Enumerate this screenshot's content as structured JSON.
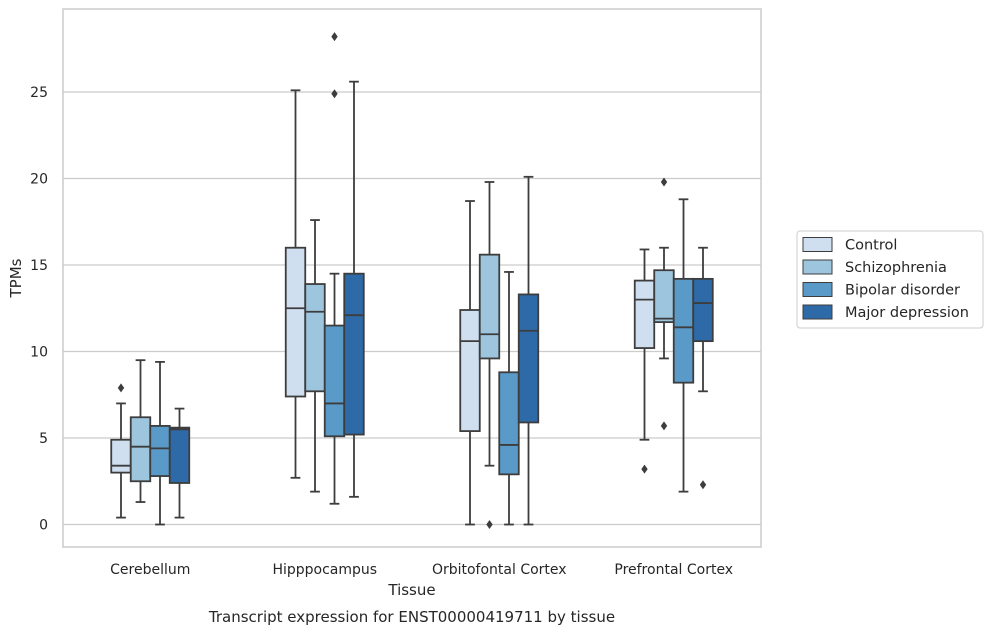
{
  "caption": "Transcript expression for ENST00000419711 by tissue",
  "chart_data": {
    "type": "box",
    "xlabel": "Tissue",
    "ylabel": "TPMs",
    "categories": [
      "Cerebellum",
      "Hipppocampus",
      "Orbitofontal Cortex",
      "Prefrontal Cortex"
    ],
    "ylim": [
      -1.3,
      29.8
    ],
    "yticks": [
      "0",
      "5",
      "10",
      "15",
      "20",
      "25"
    ],
    "grid": "horizontal",
    "legend_position": "right",
    "series": [
      {
        "name": "Control",
        "color": "#cfdff0",
        "boxes": [
          {
            "whislo": 0.4,
            "q1": 3.0,
            "med": 3.4,
            "q3": 4.9,
            "whishi": 7.0,
            "fliers": [
              7.9
            ]
          },
          {
            "whislo": 2.7,
            "q1": 7.4,
            "med": 12.5,
            "q3": 16.0,
            "whishi": 25.1,
            "fliers": []
          },
          {
            "whislo": 0.0,
            "q1": 5.4,
            "med": 10.6,
            "q3": 12.4,
            "whishi": 18.7,
            "fliers": []
          },
          {
            "whislo": 4.9,
            "q1": 10.2,
            "med": 13.0,
            "q3": 14.1,
            "whishi": 15.9,
            "fliers": [
              3.2
            ]
          }
        ]
      },
      {
        "name": "Schizophrenia",
        "color": "#9dc5de",
        "boxes": [
          {
            "whislo": 1.3,
            "q1": 2.5,
            "med": 4.5,
            "q3": 6.2,
            "whishi": 9.5,
            "fliers": []
          },
          {
            "whislo": 1.9,
            "q1": 7.7,
            "med": 12.3,
            "q3": 13.9,
            "whishi": 17.6,
            "fliers": []
          },
          {
            "whislo": 3.4,
            "q1": 9.6,
            "med": 11.0,
            "q3": 15.6,
            "whishi": 19.8,
            "fliers": [
              0.0
            ]
          },
          {
            "whislo": 9.6,
            "q1": 11.7,
            "med": 11.9,
            "q3": 14.7,
            "whishi": 16.0,
            "fliers": [
              19.8,
              5.7
            ]
          }
        ]
      },
      {
        "name": "Bipolar disorder",
        "color": "#5a9ac8",
        "boxes": [
          {
            "whislo": 0.0,
            "q1": 2.8,
            "med": 4.4,
            "q3": 5.7,
            "whishi": 9.4,
            "fliers": []
          },
          {
            "whislo": 1.2,
            "q1": 5.1,
            "med": 7.0,
            "q3": 11.5,
            "whishi": 14.5,
            "fliers": [
              28.2,
              24.9
            ]
          },
          {
            "whislo": 0.0,
            "q1": 2.9,
            "med": 4.6,
            "q3": 8.8,
            "whishi": 14.6,
            "fliers": []
          },
          {
            "whislo": 1.9,
            "q1": 8.2,
            "med": 11.4,
            "q3": 14.2,
            "whishi": 18.8,
            "fliers": []
          }
        ]
      },
      {
        "name": "Major depression",
        "color": "#2e6aa8",
        "boxes": [
          {
            "whislo": 0.4,
            "q1": 2.4,
            "med": 5.5,
            "q3": 5.6,
            "whishi": 6.7,
            "fliers": []
          },
          {
            "whislo": 1.6,
            "q1": 5.2,
            "med": 12.1,
            "q3": 14.5,
            "whishi": 25.6,
            "fliers": []
          },
          {
            "whislo": 0.0,
            "q1": 5.9,
            "med": 11.2,
            "q3": 13.3,
            "whishi": 20.1,
            "fliers": []
          },
          {
            "whislo": 7.7,
            "q1": 10.6,
            "med": 12.8,
            "q3": 14.2,
            "whishi": 16.0,
            "fliers": [
              2.3
            ]
          }
        ]
      }
    ]
  }
}
